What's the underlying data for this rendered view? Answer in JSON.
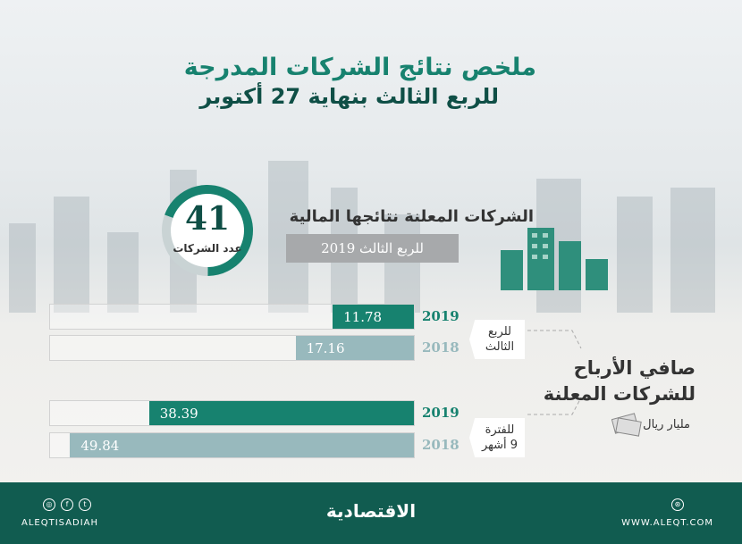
{
  "header": {
    "title": "ملخص نتائج الشركات المدرجة",
    "subtitle": "للربع الثالث بنهاية 27 أكتوبر"
  },
  "summary": {
    "count": "41",
    "count_label": "عدد الشركات",
    "announced_label": "الشركات المعلنة نتائجها المالية",
    "period_label": "للربع الثالث 2019"
  },
  "chart_data": {
    "type": "bar",
    "orientation": "horizontal",
    "title": "صافي الأرباح للشركات المعلنة",
    "unit": "مليار ريال",
    "groups": [
      {
        "label": "للربع الثالث",
        "label_lines": [
          "للربع",
          "الثالث"
        ],
        "bars": [
          {
            "year": "2019",
            "value": 11.78,
            "label": "11.78"
          },
          {
            "year": "2018",
            "value": 17.16,
            "label": "17.16"
          }
        ]
      },
      {
        "label": "للفترة 9 أشهر",
        "label_lines": [
          "للفترة",
          "9 أشهر"
        ],
        "bars": [
          {
            "year": "2019",
            "value": 38.39,
            "label": "38.39"
          },
          {
            "year": "2018",
            "value": 49.84,
            "label": "49.84"
          }
        ]
      }
    ],
    "colors": {
      "2019": "#17826f",
      "2018": "#98b9bd"
    },
    "xlim": [
      0,
      53
    ]
  },
  "title_lines": [
    "صافي الأرباح",
    "للشركات المعلنة"
  ],
  "footer": {
    "social_handle": "ALEQTISADIAH",
    "logo": "الاقتصادية",
    "website": "WWW.ALEQT.COM"
  }
}
